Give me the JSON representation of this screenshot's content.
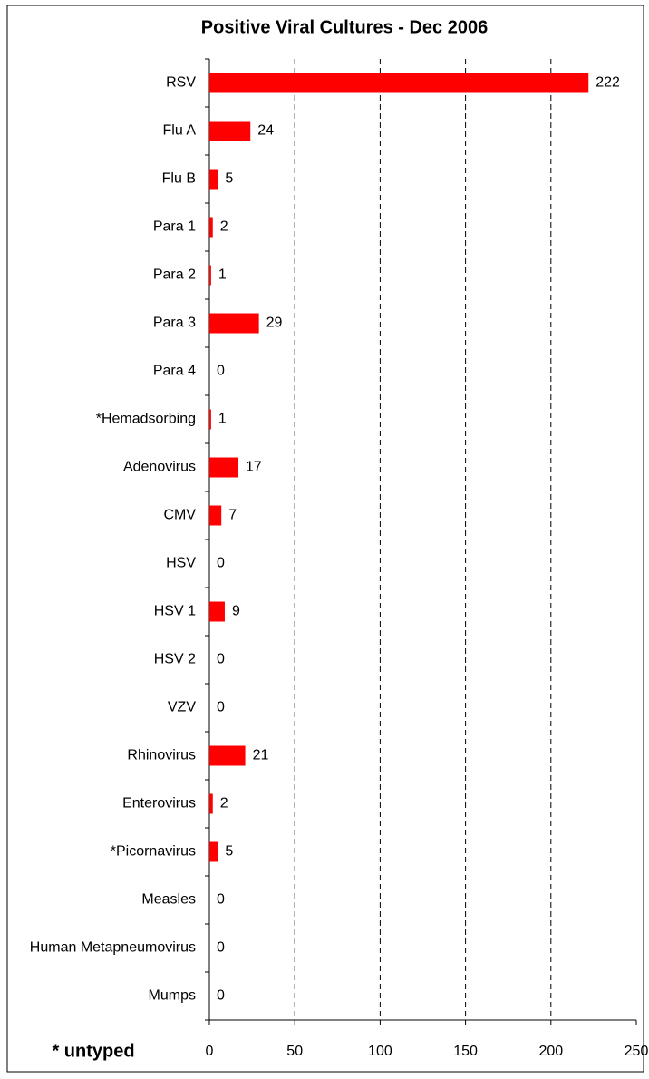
{
  "chart_data": {
    "type": "bar",
    "orientation": "horizontal",
    "title": "Positive Viral Cultures - Dec 2006",
    "annotation": "* untyped",
    "categories": [
      "RSV",
      "Flu A",
      "Flu B",
      "Para 1",
      "Para 2",
      "Para 3",
      "Para 4",
      "*Hemadsorbing",
      "Adenovirus",
      "CMV",
      "HSV",
      "HSV 1",
      "HSV 2",
      "VZV",
      "Rhinovirus",
      "Enterovirus",
      "*Picornavirus",
      "Measles",
      "Human Metapneumovirus",
      "Mumps"
    ],
    "values": [
      222,
      24,
      5,
      2,
      1,
      29,
      0,
      1,
      17,
      7,
      0,
      9,
      0,
      0,
      21,
      2,
      5,
      0,
      0,
      0
    ],
    "color": "#ff0000",
    "xlim": [
      0,
      250
    ],
    "xticks": [
      0,
      50,
      100,
      150,
      200,
      250
    ],
    "grid": true
  }
}
